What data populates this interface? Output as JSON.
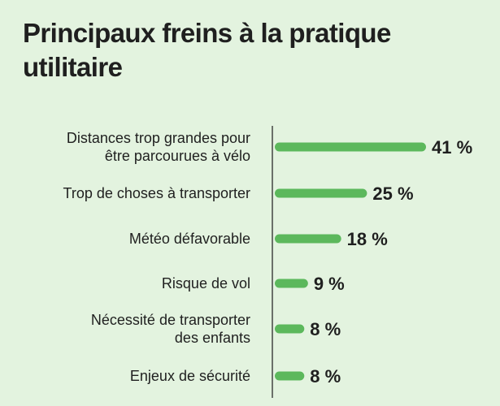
{
  "chart_data": {
    "type": "bar",
    "orientation": "horizontal",
    "title": "Principaux freins à la pratique utilitaire",
    "categories": [
      [
        "Distances trop grandes pour",
        "être parcourues à vélo"
      ],
      [
        "Trop de choses à transporter"
      ],
      [
        "Météo défavorable"
      ],
      [
        "Risque de vol"
      ],
      [
        "Nécessité de transporter",
        "des enfants"
      ],
      [
        "Enjeux de sécurité"
      ]
    ],
    "values": [
      41,
      25,
      18,
      9,
      8,
      8
    ],
    "value_labels": [
      "41 %",
      "25 %",
      "18 %",
      "9 %",
      "8 %",
      "8 %"
    ],
    "unit": "%",
    "xlim": [
      0,
      41
    ],
    "grid": false,
    "bar_color": "#5cb85c",
    "background_color": "#e3f3df"
  }
}
